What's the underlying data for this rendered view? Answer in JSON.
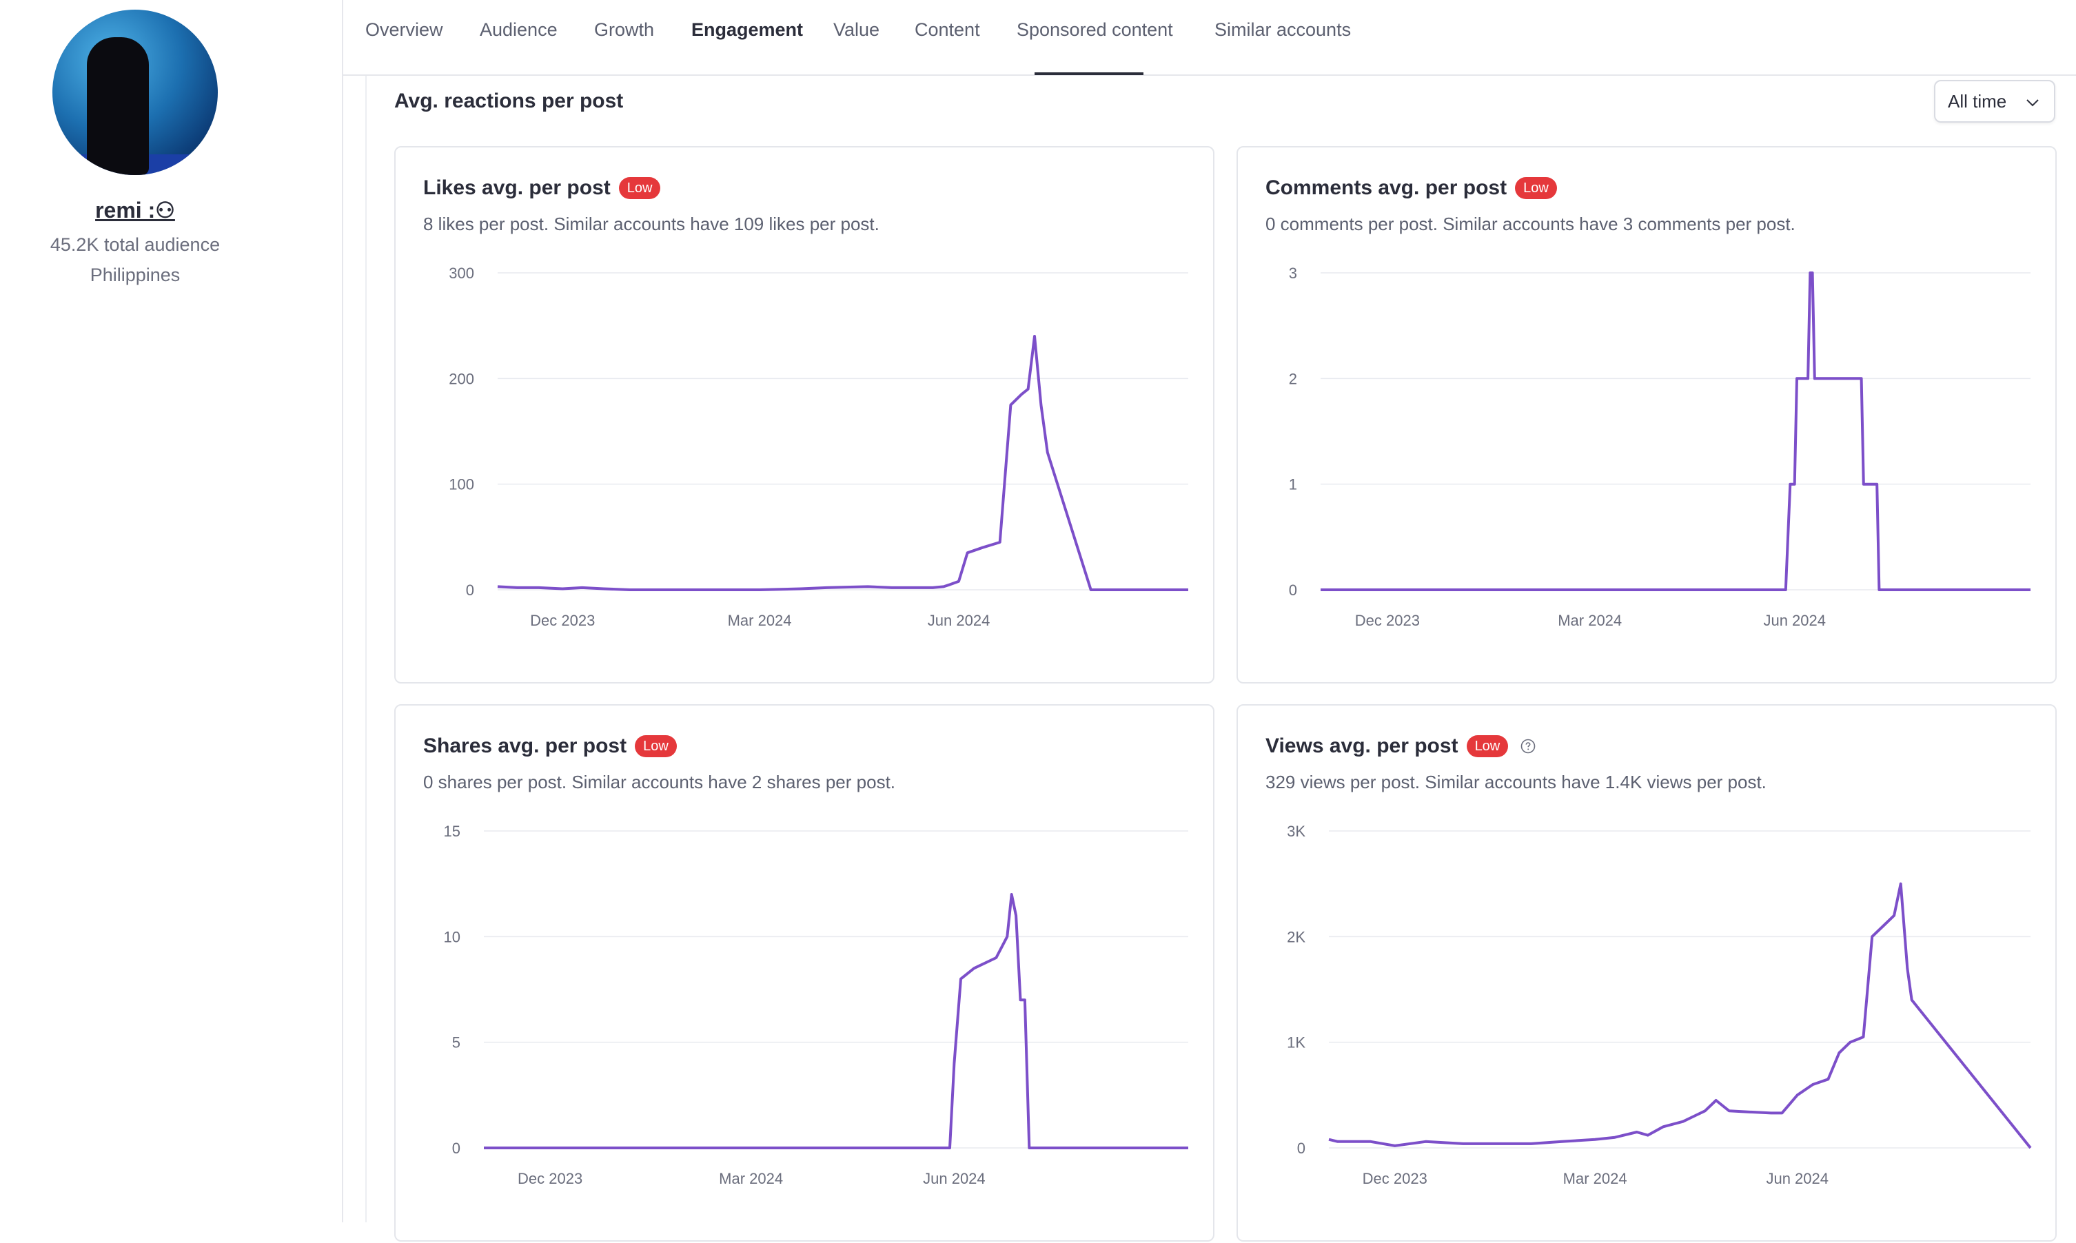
{
  "profile": {
    "name": "remi :⚇",
    "audience": "45.2K total audience",
    "country": "Philippines"
  },
  "tabs": [
    {
      "label": "Overview"
    },
    {
      "label": "Audience"
    },
    {
      "label": "Growth"
    },
    {
      "label": "Engagement",
      "active": true
    },
    {
      "label": "Value"
    },
    {
      "label": "Content"
    },
    {
      "label": "Sponsored content"
    },
    {
      "label": "Similar accounts"
    }
  ],
  "section": {
    "title": "Avg. reactions per post",
    "time_filter": "All time"
  },
  "cards": [
    {
      "title": "Likes avg. per post",
      "badge": "Low",
      "subtitle": "8 likes per post. Similar accounts have 109 likes per post."
    },
    {
      "title": "Comments avg. per post",
      "badge": "Low",
      "subtitle": "0 comments per post. Similar accounts have 3 comments per post."
    },
    {
      "title": "Shares avg. per post",
      "badge": "Low",
      "subtitle": "0 shares per post. Similar accounts have 2 shares per post."
    },
    {
      "title": "Views avg. per post",
      "badge": "Low",
      "subtitle": "329 views per post. Similar accounts have 1.4K views per post."
    }
  ],
  "colors": {
    "line": "#7c4fc9",
    "badge": "#e5383b",
    "grid": "#e8eaef"
  },
  "chart_data": [
    {
      "type": "line",
      "yticks": [
        "0",
        "100",
        "200",
        "300"
      ],
      "ylim": [
        0,
        300
      ],
      "xticks": [
        "Dec 2023",
        "Mar 2024",
        "Jun 2024"
      ],
      "series": [
        {
          "x": [
            "2023-11-01",
            "2023-11-10",
            "2023-11-20",
            "2023-12-01",
            "2023-12-10",
            "2023-12-20",
            "2024-01-01",
            "2024-01-20",
            "2024-02-10",
            "2024-03-01",
            "2024-03-20",
            "2024-04-01",
            "2024-04-20",
            "2024-05-01",
            "2024-05-20",
            "2024-05-25",
            "2024-05-28",
            "2024-06-01",
            "2024-06-05",
            "2024-06-12",
            "2024-06-20",
            "2024-06-25",
            "2024-06-30",
            "2024-07-03",
            "2024-07-06",
            "2024-07-09",
            "2024-07-12",
            "2024-08-01",
            "2024-09-15"
          ],
          "y": [
            3,
            2,
            2,
            1,
            2,
            1,
            0,
            0,
            0,
            0,
            1,
            2,
            3,
            2,
            2,
            3,
            5,
            8,
            35,
            40,
            45,
            175,
            185,
            190,
            240,
            175,
            130,
            0,
            0
          ]
        }
      ]
    },
    {
      "type": "line",
      "yticks": [
        "0",
        "1",
        "2",
        "3"
      ],
      "ylim": [
        0,
        3
      ],
      "xticks": [
        "Dec 2023",
        "Mar 2024",
        "Jun 2024"
      ],
      "series": [
        {
          "x": [
            "2023-11-01",
            "2024-05-28",
            "2024-05-30",
            "2024-06-01",
            "2024-06-02",
            "2024-06-07",
            "2024-06-08",
            "2024-06-09",
            "2024-06-10",
            "2024-06-16",
            "2024-06-17",
            "2024-06-18",
            "2024-06-19",
            "2024-07-01",
            "2024-07-02",
            "2024-07-08",
            "2024-07-09",
            "2024-09-15"
          ],
          "y": [
            0,
            0,
            1,
            1,
            2,
            2,
            3,
            3,
            2,
            2,
            2,
            2,
            2,
            2,
            1,
            1,
            0,
            0
          ]
        }
      ]
    },
    {
      "type": "line",
      "yticks": [
        "0",
        "5",
        "10",
        "15"
      ],
      "ylim": [
        0,
        15
      ],
      "xticks": [
        "Dec 2023",
        "Mar 2024",
        "Jun 2024"
      ],
      "series": [
        {
          "x": [
            "2023-11-01",
            "2024-05-30",
            "2024-06-01",
            "2024-06-04",
            "2024-06-10",
            "2024-06-20",
            "2024-06-25",
            "2024-06-27",
            "2024-06-29",
            "2024-07-01",
            "2024-07-03",
            "2024-07-05",
            "2024-07-06",
            "2024-07-08",
            "2024-09-15"
          ],
          "y": [
            0,
            0,
            4,
            8,
            8.5,
            9,
            10,
            12,
            11,
            7,
            7,
            0,
            0,
            0,
            0
          ]
        }
      ]
    },
    {
      "type": "line",
      "yticks": [
        "0",
        "1K",
        "2K",
        "3K"
      ],
      "ylim": [
        0,
        3000
      ],
      "xticks": [
        "Dec 2023",
        "Mar 2024",
        "Jun 2024"
      ],
      "series": [
        {
          "x": [
            "2023-11-01",
            "2023-11-05",
            "2023-11-20",
            "2023-12-01",
            "2023-12-15",
            "2024-01-01",
            "2024-01-15",
            "2024-02-01",
            "2024-02-15",
            "2024-03-01",
            "2024-03-10",
            "2024-03-20",
            "2024-03-25",
            "2024-04-01",
            "2024-04-10",
            "2024-04-15",
            "2024-04-20",
            "2024-04-25",
            "2024-05-01",
            "2024-05-20",
            "2024-05-25",
            "2024-06-01",
            "2024-06-08",
            "2024-06-15",
            "2024-06-20",
            "2024-06-25",
            "2024-07-01",
            "2024-07-05",
            "2024-07-10",
            "2024-07-15",
            "2024-07-18",
            "2024-07-21",
            "2024-07-23",
            "2024-09-15"
          ],
          "y": [
            80,
            60,
            60,
            20,
            60,
            40,
            40,
            40,
            60,
            80,
            100,
            150,
            120,
            200,
            250,
            300,
            350,
            450,
            350,
            330,
            330,
            500,
            600,
            650,
            900,
            1000,
            1050,
            2000,
            2100,
            2200,
            2500,
            1700,
            1400,
            0
          ]
        }
      ]
    }
  ]
}
